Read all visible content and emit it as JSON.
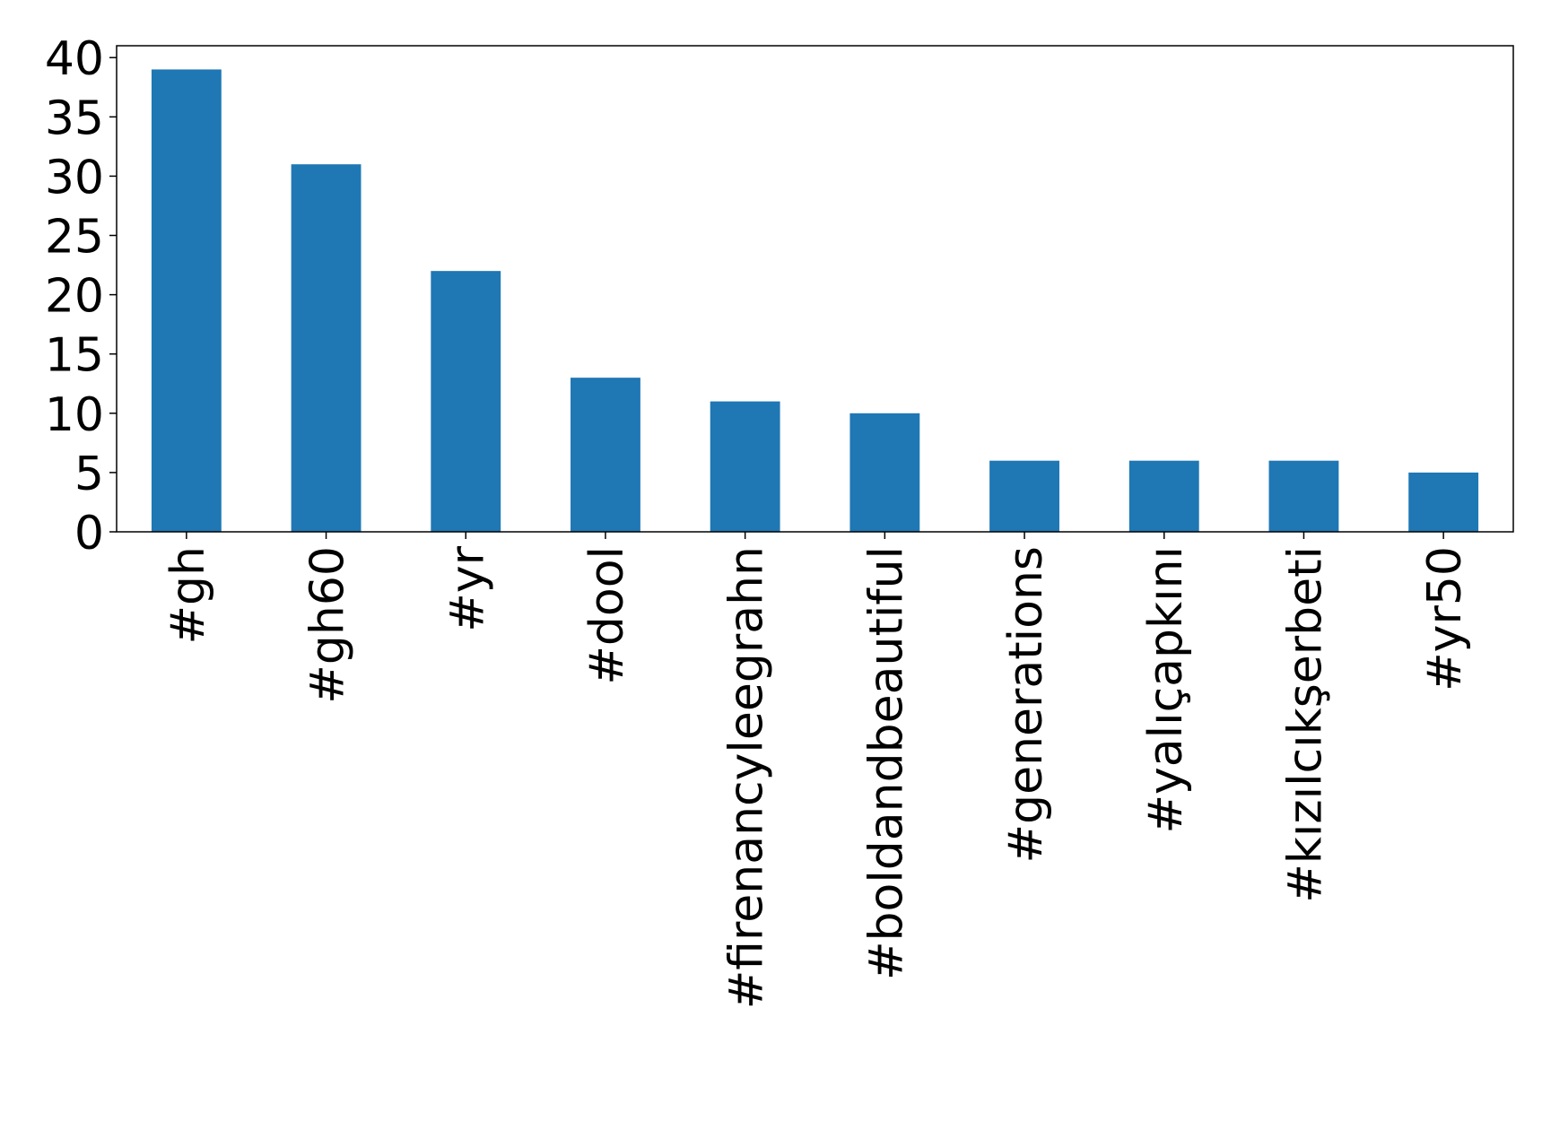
{
  "chart_data": {
    "type": "bar",
    "categories": [
      "#gh",
      "#gh60",
      "#yr",
      "#dool",
      "#firenancyleegrahn",
      "#boldandbeautiful",
      "#generations",
      "#yalıçapkını",
      "#kızılcıkşerbeti",
      "#yr50"
    ],
    "values": [
      39,
      31,
      22,
      13,
      11,
      10,
      6,
      6,
      6,
      5
    ],
    "color": "#1f77b4",
    "ylim": [
      0,
      41
    ],
    "yticks": [
      0,
      5,
      10,
      15,
      20,
      25,
      30,
      35,
      40
    ],
    "grid": false
  }
}
